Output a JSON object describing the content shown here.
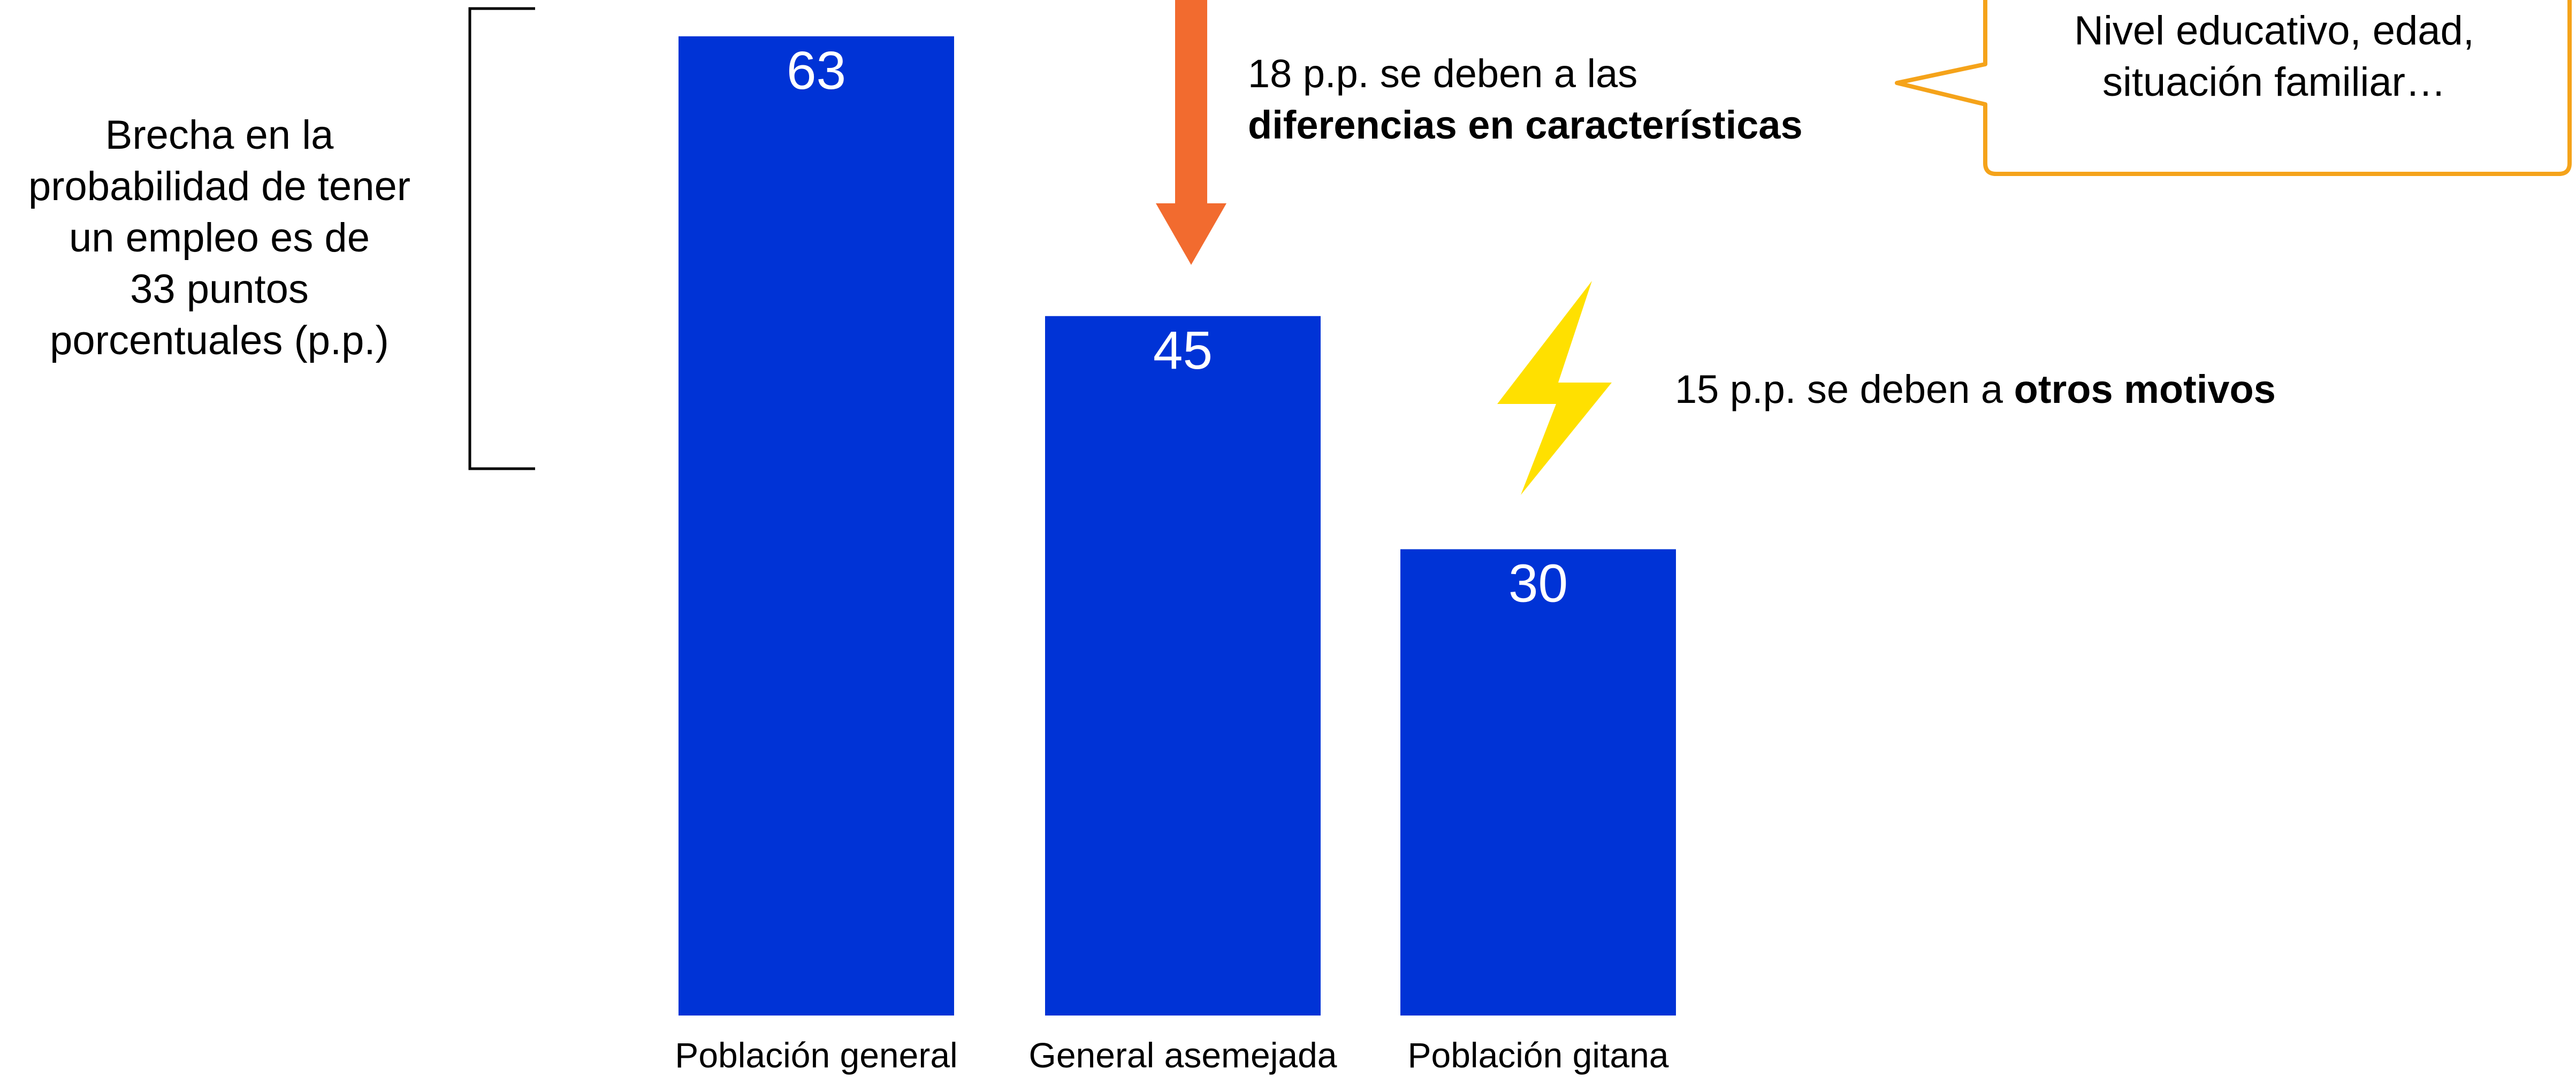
{
  "chart_data": {
    "type": "bar",
    "categories": [
      "Población general",
      "General asemejada",
      "Población gitana"
    ],
    "values": [
      63,
      45,
      30
    ],
    "bar_color": "#0033D6",
    "value_label_color": "#FFFFFF",
    "ylim": [
      0,
      65
    ],
    "grid": false,
    "xlabel": "",
    "ylabel": ""
  },
  "annotations": {
    "gap_label": [
      "Brecha en la",
      "probabilidad de tener",
      "un empleo es de",
      "33 puntos",
      "porcentuales (p.p.)"
    ],
    "characteristics_prefix": "18 p.p. se deben a las",
    "characteristics_bold": "diferencias en características",
    "other_prefix": "15 p.p. se deben a ",
    "other_bold": "otros motivos",
    "callout_lines": [
      "Nivel educativo, edad,",
      "situación familiar…"
    ],
    "arrow_color": "#F26B2F",
    "callout_border_color": "#F5A31A",
    "bolt_color": "#FFE000"
  }
}
